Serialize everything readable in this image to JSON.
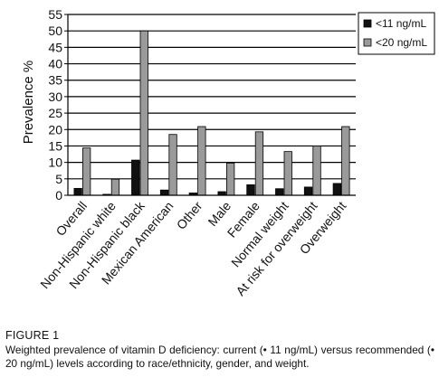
{
  "chart_data": {
    "type": "bar",
    "title": "",
    "xlabel": "",
    "ylabel": "Prevalence %",
    "ylim": [
      0,
      55
    ],
    "yticks": [
      0,
      5,
      10,
      15,
      20,
      25,
      30,
      35,
      40,
      45,
      50,
      55
    ],
    "grid": true,
    "legend_position": "top-right",
    "categories": [
      "Overall",
      "Non-Hispanic white",
      "Non-Hispanic black",
      "Mexican American",
      "Other",
      "Male",
      "Female",
      "Normal weight",
      "At risk for overweight",
      "Overweight"
    ],
    "series": [
      {
        "name": "<11 ng/mL",
        "color": "#111111",
        "values": [
          2.1,
          0.3,
          10.7,
          1.6,
          0.7,
          1.1,
          3.2,
          2.0,
          2.5,
          3.6
        ]
      },
      {
        "name": "<20 ng/mL",
        "color": "#9a9a9a",
        "values": [
          14.4,
          4.9,
          50.0,
          18.5,
          20.9,
          9.8,
          19.3,
          13.3,
          15.0,
          20.9
        ]
      }
    ]
  },
  "caption": {
    "label": "FIGURE 1",
    "text": "Weighted prevalence of vitamin D deficiency: current (• 11 ng/mL) versus recommended (• 20 ng/mL) levels according to race/ethnicity, gender, and weight."
  }
}
